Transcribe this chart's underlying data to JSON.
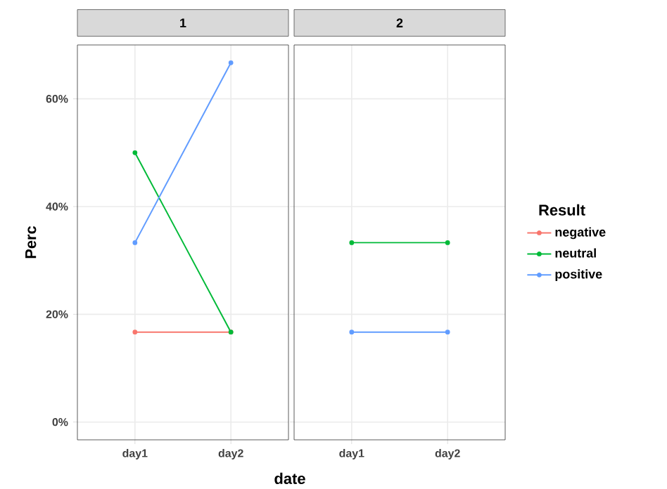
{
  "chart_data": [
    {
      "type": "line",
      "title": "1",
      "ylabel": "Perc",
      "xlabel": "date",
      "categories": [
        "day1",
        "day2"
      ],
      "series": [
        {
          "color": "#f8766d",
          "values": [
            16.7,
            16.7
          ]
        },
        {
          "color": "#00ba38",
          "values": [
            50,
            16.7
          ]
        },
        {
          "color": "#619cff",
          "values": [
            33.3,
            66.7
          ]
        }
      ],
      "ylim": [
        -3.3,
        70
      ],
      "yticks": [
        {
          "value": 0,
          "label": "0%"
        },
        {
          "value": 20,
          "label": "20%"
        },
        {
          "value": 40,
          "label": "40%"
        },
        {
          "value": 60,
          "label": "60%"
        }
      ],
      "grid": true,
      "marker": "circle"
    },
    {
      "type": "line",
      "title": "2",
      "categories": [
        "day1",
        "day2"
      ],
      "series": [
        {
          "name": "negative",
          "color": "#f8766d",
          "values": [
            null,
            null
          ]
        },
        {
          "name": "neutral",
          "color": "#00ba38",
          "values": [
            33.3,
            33.3
          ]
        },
        {
          "name": "positive",
          "color": "#619cff",
          "values": [
            16.7,
            16.7
          ]
        }
      ],
      "ylim": [
        -3.3,
        70
      ],
      "yticks": [
        {
          "value": 0,
          "label": null
        },
        {
          "value": 20,
          "label": null
        },
        {
          "value": 40,
          "label": null
        },
        {
          "value": 60,
          "label": null
        }
      ],
      "grid": true,
      "marker": "circle",
      "tick_labels": "x",
      "legend": "right",
      "legend_title": "Result"
    }
  ]
}
